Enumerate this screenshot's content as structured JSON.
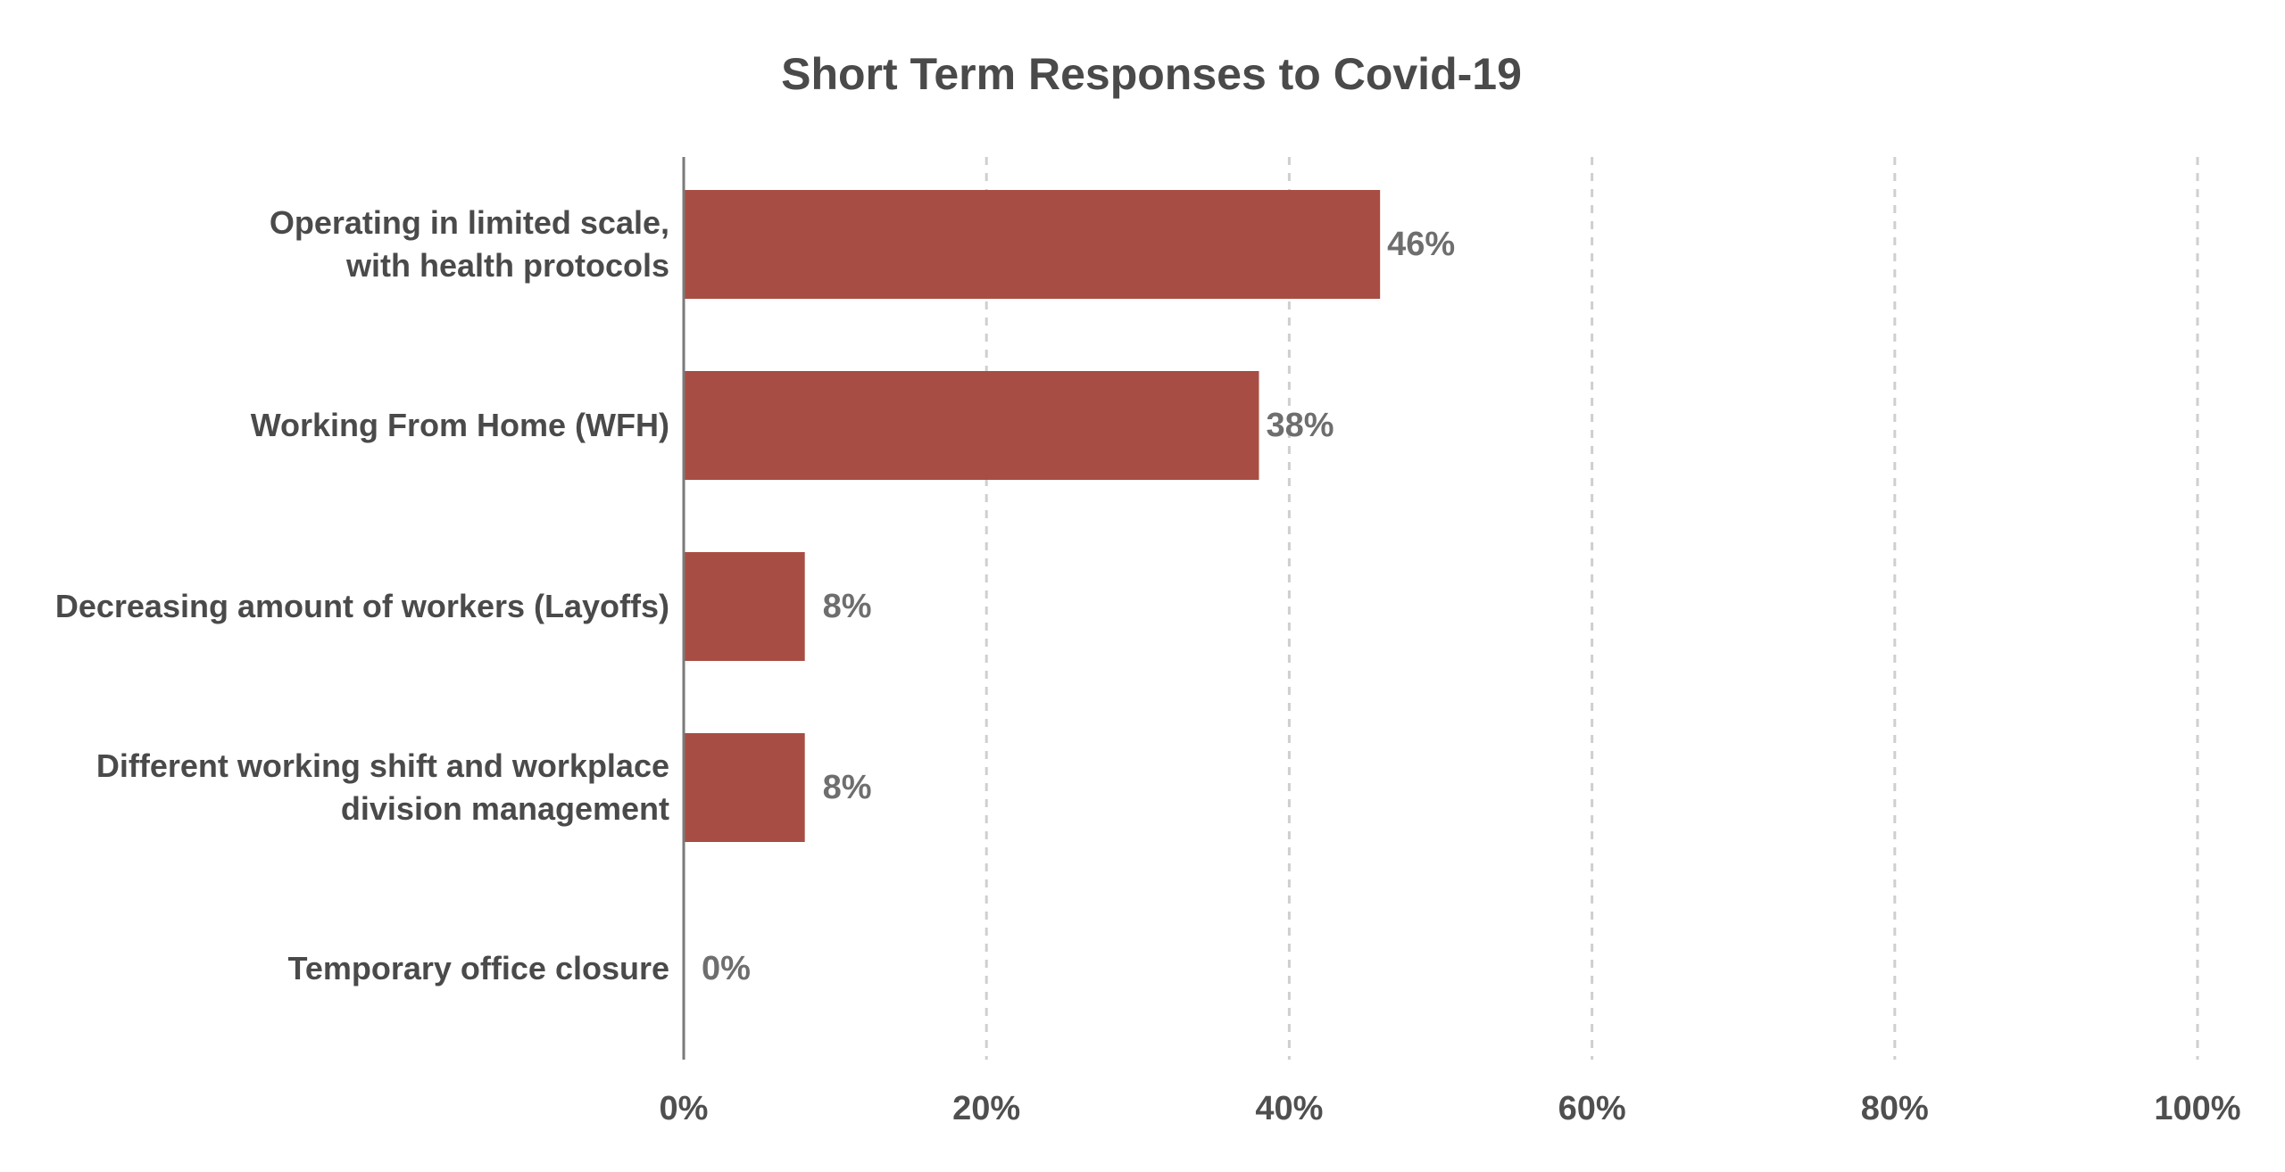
{
  "chart_data": {
    "type": "bar",
    "orientation": "horizontal",
    "title": "Short Term Responses to Covid-19",
    "xlabel": "",
    "ylabel": "",
    "categories": [
      [
        "Operating in limited scale,",
        "with health protocols"
      ],
      [
        "Working From Home (WFH)"
      ],
      [
        "Decreasing amount of workers (Layoffs)"
      ],
      [
        "Different working shift and workplace",
        "division management"
      ],
      [
        "Temporary office closure"
      ]
    ],
    "values": [
      46,
      38,
      8,
      8,
      0
    ],
    "value_labels": [
      "46%",
      "38%",
      "8%",
      "8%",
      "0%"
    ],
    "xlim": [
      0,
      100
    ],
    "xticks": [
      0,
      20,
      40,
      60,
      80,
      100
    ],
    "xtick_labels": [
      "0%",
      "20%",
      "40%",
      "60%",
      "80%",
      "100%"
    ],
    "grid": "vertical dashed",
    "legend": "none",
    "bar_color": "#a84d43"
  }
}
